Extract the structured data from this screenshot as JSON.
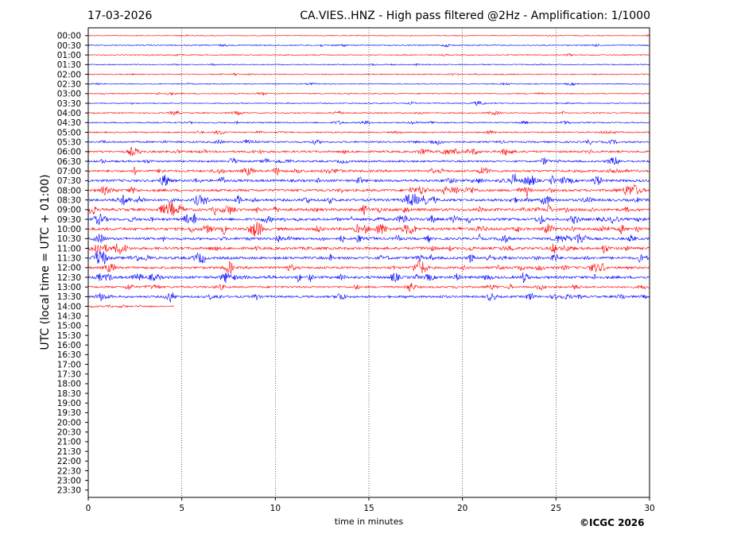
{
  "header": {
    "date": "17-03-2026",
    "title": "CA.VIES..HNZ - High pass filtered @2Hz - Amplification: 1/1000"
  },
  "footer": {
    "copyright": "©ICGC 2026"
  },
  "chart_data": {
    "type": "line",
    "title": "CA.VIES..HNZ - High pass filtered @2Hz - Amplification: 1/1000",
    "xlabel": "time in minutes",
    "ylabel": "UTC (local time = UTC + 01:00)",
    "xlim": [
      0,
      30
    ],
    "xticks": [
      0,
      5,
      10,
      15,
      20,
      25,
      30
    ],
    "grid": "vertical dotted lines at each x tick",
    "rows": [
      "00:00",
      "00:30",
      "01:00",
      "01:30",
      "02:00",
      "02:30",
      "03:00",
      "03:30",
      "04:00",
      "04:30",
      "05:00",
      "05:30",
      "06:00",
      "06:30",
      "07:00",
      "07:30",
      "08:00",
      "08:30",
      "09:00",
      "09:30",
      "10:00",
      "10:30",
      "11:00",
      "11:30",
      "12:00",
      "12:30",
      "13:00",
      "13:30",
      "14:00",
      "14:30",
      "15:00",
      "15:30",
      "16:00",
      "16:30",
      "17:00",
      "17:30",
      "18:00",
      "18:30",
      "19:00",
      "19:30",
      "20:00",
      "20:30",
      "21:00",
      "21:30",
      "22:00",
      "22:30",
      "23:00",
      "23:30"
    ],
    "row_colors": [
      "#ff0000",
      "#0000ff"
    ],
    "last_trace": {
      "row": "14:00",
      "end_minute": 4.6
    },
    "trace_activity": [
      0.15,
      0.25,
      0.2,
      0.2,
      0.25,
      0.2,
      0.25,
      0.25,
      0.3,
      0.35,
      0.35,
      0.55,
      0.65,
      0.6,
      0.75,
      0.85,
      0.85,
      0.9,
      0.95,
      0.9,
      1.0,
      0.85,
      0.9,
      0.9,
      0.8,
      0.9,
      0.6,
      0.7,
      0.3
    ]
  }
}
